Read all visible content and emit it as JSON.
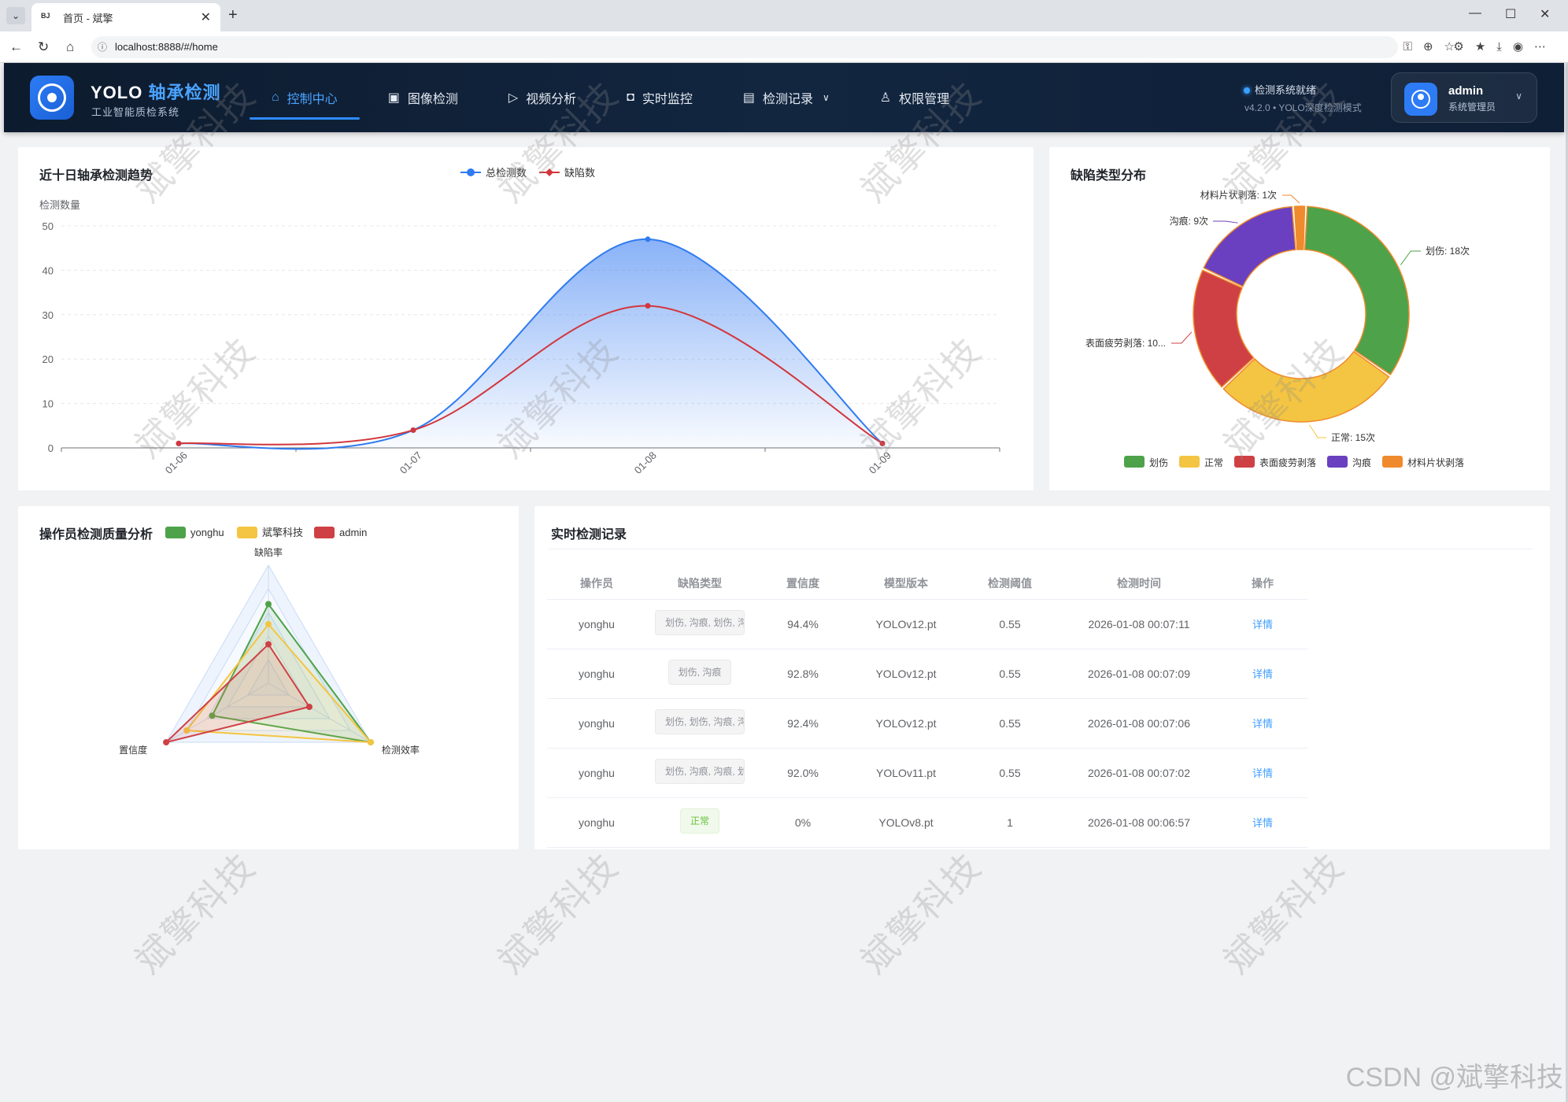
{
  "browser": {
    "tab_title": "首页 - 斌擎",
    "tab_favicon": "BJ",
    "url": "localhost:8888/#/home"
  },
  "header": {
    "brand_prefix": "YOLO",
    "brand_highlight": "轴承检测",
    "subtitle": "工业智能质检系统",
    "nav": [
      {
        "label": "控制中心",
        "icon": "home-icon",
        "active": true
      },
      {
        "label": "图像检测",
        "icon": "image-icon"
      },
      {
        "label": "视频分析",
        "icon": "play-icon"
      },
      {
        "label": "实时监控",
        "icon": "camera-icon"
      },
      {
        "label": "检测记录",
        "icon": "document-icon",
        "dropdown": true
      },
      {
        "label": "权限管理",
        "icon": "user-icon"
      }
    ],
    "status": "检测系统就绪",
    "version": "v4.2.0 • YOLO深度检测模式",
    "user": {
      "name": "admin",
      "role": "系统管理员"
    }
  },
  "trend": {
    "title": "近十日轴承检测趋势",
    "chart_data": {
      "type": "area",
      "ylabel": "检测数量",
      "ylim": [
        0,
        50
      ],
      "yticks": [
        "0",
        "10",
        "20",
        "30",
        "40",
        "50"
      ],
      "categories": [
        "01-06",
        "01-07",
        "01-08",
        "01-09"
      ],
      "series": [
        {
          "name": "总检测数",
          "color": "#2f7bf0",
          "values": [
            1,
            4,
            47,
            1
          ]
        },
        {
          "name": "缺陷数",
          "color": "#d2363d",
          "values": [
            1,
            4,
            32,
            1
          ]
        }
      ]
    }
  },
  "defect": {
    "title": "缺陷类型分布",
    "chart_data": {
      "type": "pie",
      "slices": [
        {
          "name": "划伤",
          "value": 18,
          "color": "#4ea24a",
          "label": "划伤: 18次"
        },
        {
          "name": "正常",
          "value": 15,
          "color": "#f4c542",
          "label": "正常: 15次"
        },
        {
          "name": "表面疲劳剥落",
          "value": 10,
          "color": "#cf4044",
          "label": "表面疲劳剥落: 10..."
        },
        {
          "name": "沟痕",
          "value": 9,
          "color": "#6a3fc0",
          "label": "沟痕: 9次"
        },
        {
          "name": "材料片状剥落",
          "value": 1,
          "color": "#ef8b2c",
          "label": "材料片状剥落: 1次"
        }
      ]
    }
  },
  "radar": {
    "title": "操作员检测质量分析",
    "chart_data": {
      "type": "radar",
      "indicators": [
        "缺陷率",
        "检测效率",
        "置信度"
      ],
      "series": [
        {
          "name": "yonghu",
          "color": "#4ea24a",
          "values": [
            0.67,
            1.0,
            0.55
          ]
        },
        {
          "name": "斌擎科技",
          "color": "#f4c542",
          "values": [
            0.5,
            1.0,
            0.8
          ]
        },
        {
          "name": "admin",
          "color": "#cf4044",
          "values": [
            0.33,
            0.4,
            1.0
          ]
        }
      ]
    }
  },
  "records": {
    "title": "实时检测记录",
    "columns": [
      "操作员",
      "缺陷类型",
      "置信度",
      "模型版本",
      "检测阈值",
      "检测时间",
      "操作"
    ],
    "rows": [
      {
        "operator": "yonghu",
        "defect": "划伤, 沟痕, 划伤, 沟痕",
        "conf": "94.4%",
        "model": "YOLOv12.pt",
        "threshold": "0.55",
        "time": "2026-01-08 00:07:11",
        "action": "详情",
        "ok": false
      },
      {
        "operator": "yonghu",
        "defect": "划伤, 沟痕",
        "conf": "92.8%",
        "model": "YOLOv12.pt",
        "threshold": "0.55",
        "time": "2026-01-08 00:07:09",
        "action": "详情",
        "ok": false
      },
      {
        "operator": "yonghu",
        "defect": "划伤, 划伤, 沟痕, 沟痕",
        "conf": "92.4%",
        "model": "YOLOv12.pt",
        "threshold": "0.55",
        "time": "2026-01-08 00:07:06",
        "action": "详情",
        "ok": false
      },
      {
        "operator": "yonghu",
        "defect": "划伤, 沟痕, 沟痕, 划伤",
        "conf": "92.0%",
        "model": "YOLOv11.pt",
        "threshold": "0.55",
        "time": "2026-01-08 00:07:02",
        "action": "详情",
        "ok": false
      },
      {
        "operator": "yonghu",
        "defect": "正常",
        "conf": "0%",
        "model": "YOLOv8.pt",
        "threshold": "1",
        "time": "2026-01-08 00:06:57",
        "action": "详情",
        "ok": true
      }
    ]
  },
  "watermark": "斌擎科技",
  "footer_watermark": "CSDN @斌擎科技"
}
